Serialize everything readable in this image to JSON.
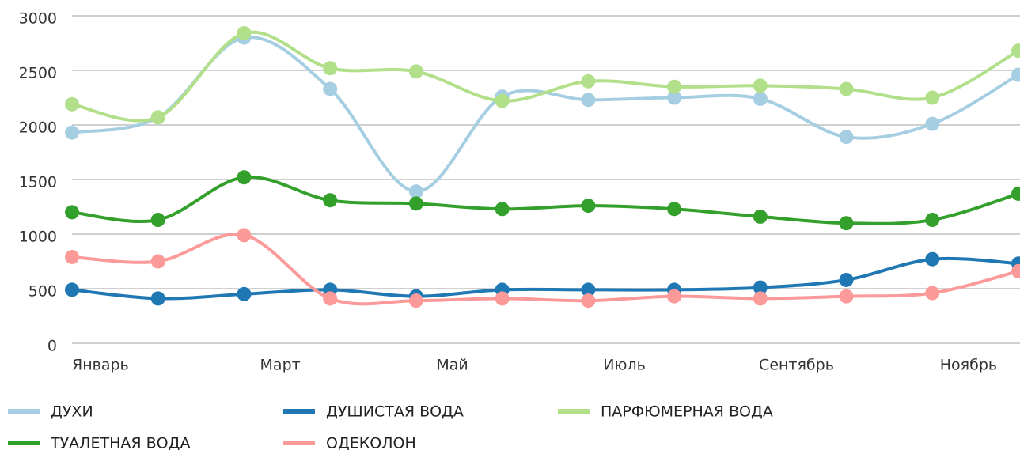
{
  "chart_data": {
    "type": "line",
    "categories": [
      "Январь",
      null,
      "Март",
      null,
      "Май",
      null,
      "Июль",
      null,
      "Сентябрь",
      null,
      "Ноябрь",
      null
    ],
    "series": [
      {
        "name": "ДУХИ",
        "color": "#a6cee3",
        "values": [
          1930,
          2070,
          2800,
          2330,
          1390,
          2260,
          2230,
          2250,
          2240,
          1890,
          2010,
          2460
        ]
      },
      {
        "name": "ДУШИСТАЯ ВОДА",
        "color": "#1f78b4",
        "values": [
          490,
          410,
          450,
          490,
          430,
          490,
          490,
          490,
          510,
          580,
          770,
          730
        ]
      },
      {
        "name": "ПАРФЮМЕРНАЯ ВОДА",
        "color": "#b2df8a",
        "values": [
          2190,
          2070,
          2840,
          2520,
          2490,
          2220,
          2400,
          2350,
          2360,
          2330,
          2250,
          2680
        ]
      },
      {
        "name": "ТУАЛЕТНАЯ ВОДА",
        "color": "#33a02c",
        "values": [
          1200,
          1130,
          1520,
          1310,
          1280,
          1230,
          1260,
          1230,
          1160,
          1100,
          1130,
          1370
        ]
      },
      {
        "name": "ОДЕКОЛОН",
        "color": "#fb9a99",
        "values": [
          790,
          750,
          990,
          410,
          390,
          410,
          390,
          430,
          410,
          430,
          460,
          660
        ]
      }
    ],
    "ylim": [
      0,
      3000
    ],
    "yticks": [
      0,
      500,
      1000,
      1500,
      2000,
      2500,
      3000
    ],
    "grid": true,
    "legend": "bottom"
  }
}
